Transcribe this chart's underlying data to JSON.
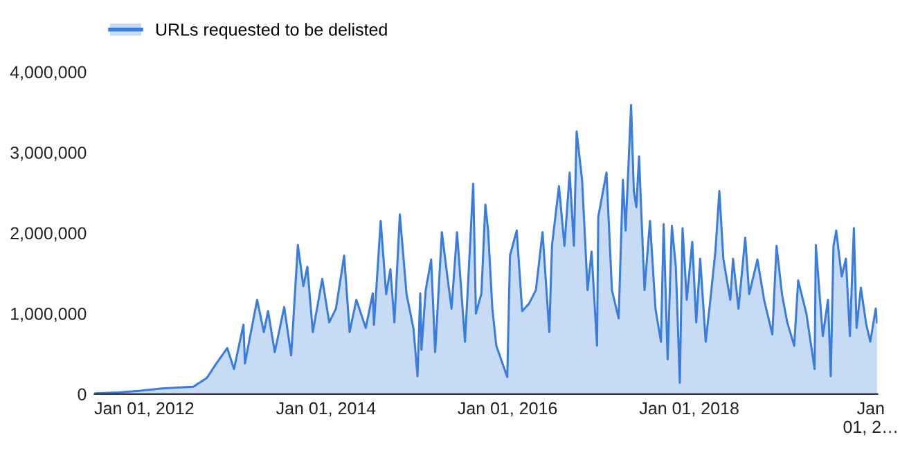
{
  "chart_data": {
    "type": "area",
    "legend": "top left",
    "grid": false,
    "x": [
      "2011-06-18",
      "2011-09-19",
      "2011-12-10",
      "2012-03-12",
      "2012-07-16",
      "2012-09-09",
      "2012-10-17",
      "2012-11-30",
      "2012-12-27",
      "2013-02-03",
      "2013-02-09",
      "2013-03-30",
      "2013-04-26",
      "2013-05-13",
      "2013-06-09",
      "2013-07-17",
      "2013-08-14",
      "2013-09-10",
      "2013-10-02",
      "2013-10-18",
      "2013-11-09",
      "2013-12-17",
      "2014-01-14",
      "2014-02-10",
      "2014-03-15",
      "2014-04-06",
      "2014-05-03",
      "2014-06-10",
      "2014-07-08",
      "2014-07-13",
      "2014-08-09",
      "2014-08-31",
      "2014-09-17",
      "2014-10-03",
      "2014-10-25",
      "2014-11-21",
      "2014-12-19",
      "2015-01-04",
      "2015-01-15",
      "2015-01-20",
      "2015-02-06",
      "2015-02-28",
      "2015-03-16",
      "2015-04-12",
      "2015-05-04",
      "2015-05-21",
      "2015-06-12",
      "2015-07-14",
      "2015-07-25",
      "2015-08-16",
      "2015-08-27",
      "2015-09-18",
      "2015-10-04",
      "2015-10-15",
      "2015-11-01",
      "2015-11-17",
      "2015-12-31",
      "2016-01-11",
      "2016-02-07",
      "2016-02-29",
      "2016-03-27",
      "2016-04-24",
      "2016-05-21",
      "2016-06-17",
      "2016-06-28",
      "2016-07-26",
      "2016-08-17",
      "2016-09-07",
      "2016-09-24",
      "2016-10-05",
      "2016-10-27",
      "2016-11-18",
      "2016-12-04",
      "2016-12-26",
      "2016-12-31",
      "2017-02-02",
      "2017-02-24",
      "2017-03-23",
      "2017-04-09",
      "2017-04-20",
      "2017-05-12",
      "2017-05-23",
      "2017-06-02",
      "2017-06-13",
      "2017-07-05",
      "2017-07-27",
      "2017-08-18",
      "2017-09-09",
      "2017-09-20",
      "2017-10-06",
      "2017-10-23",
      "2017-11-08",
      "2017-11-24",
      "2017-12-05",
      "2017-12-22",
      "2018-01-13",
      "2018-01-29",
      "2018-02-14",
      "2018-03-08",
      "2018-03-25",
      "2018-04-16",
      "2018-05-02",
      "2018-05-18",
      "2018-06-15",
      "2018-06-26",
      "2018-07-18",
      "2018-08-14",
      "2018-08-30",
      "2018-10-02",
      "2018-10-29",
      "2018-12-01",
      "2018-12-18",
      "2019-01-09",
      "2019-01-30",
      "2019-02-27",
      "2019-03-15",
      "2019-04-17",
      "2019-05-20",
      "2019-05-25",
      "2019-06-22",
      "2019-07-13",
      "2019-07-24",
      "2019-08-04",
      "2019-08-15",
      "2019-09-06",
      "2019-09-23",
      "2019-10-09",
      "2019-10-25",
      "2019-11-05",
      "2019-11-22",
      "2019-12-14",
      "2019-12-30",
      "2020-01-21",
      "2020-01-26"
    ],
    "series": [
      {
        "name": "URLs requested to be delisted",
        "color": "#3b7ddd",
        "values": [
          10000,
          20000,
          40000,
          70000,
          90000,
          200000,
          380000,
          570000,
          310000,
          860000,
          380000,
          1170000,
          770000,
          1030000,
          520000,
          1080000,
          480000,
          1850000,
          1340000,
          1580000,
          770000,
          1430000,
          890000,
          1060000,
          1720000,
          770000,
          1170000,
          820000,
          1250000,
          860000,
          2150000,
          1240000,
          1550000,
          890000,
          2230000,
          1240000,
          810000,
          220000,
          1250000,
          550000,
          1290000,
          1670000,
          520000,
          2010000,
          1460000,
          1060000,
          2010000,
          650000,
          1290000,
          2610000,
          1000000,
          1250000,
          2350000,
          2030000,
          1060000,
          600000,
          210000,
          1720000,
          2030000,
          1030000,
          1120000,
          1290000,
          2010000,
          770000,
          1850000,
          2580000,
          1840000,
          2750000,
          1840000,
          3260000,
          2660000,
          1290000,
          1770000,
          600000,
          2200000,
          2750000,
          1290000,
          940000,
          2660000,
          2030000,
          3590000,
          2520000,
          2320000,
          2950000,
          1290000,
          2150000,
          1060000,
          650000,
          2110000,
          430000,
          2090000,
          1580000,
          140000,
          2060000,
          1170000,
          1890000,
          890000,
          1680000,
          650000,
          1120000,
          1770000,
          2520000,
          1680000,
          1170000,
          1680000,
          1060000,
          1940000,
          1240000,
          1670000,
          1170000,
          740000,
          1840000,
          1240000,
          890000,
          600000,
          1410000,
          1000000,
          310000,
          1850000,
          720000,
          1170000,
          220000,
          1840000,
          2030000,
          1460000,
          1680000,
          720000,
          2060000,
          820000,
          1320000,
          860000,
          650000,
          1060000,
          890000
        ]
      }
    ],
    "xlim": [
      "2011-06-15",
      "2020-01-28"
    ],
    "xticks": [
      {
        "value": "2012-01-01",
        "label": "Jan 01, 2012"
      },
      {
        "value": "2014-01-01",
        "label": "Jan 01, 2014"
      },
      {
        "value": "2016-01-01",
        "label": "Jan 01, 2016"
      },
      {
        "value": "2018-01-01",
        "label": "Jan 01, 2018"
      },
      {
        "value": "2020-01-01",
        "label": "Jan\n01, 2…"
      }
    ],
    "ylim": [
      0,
      4000000
    ],
    "yticks": [
      {
        "value": 0,
        "label": "0"
      },
      {
        "value": 1000000,
        "label": "1,000,000"
      },
      {
        "value": 2000000,
        "label": "2,000,000"
      },
      {
        "value": 3000000,
        "label": "3,000,000"
      },
      {
        "value": 4000000,
        "label": "4,000,000"
      }
    ]
  }
}
